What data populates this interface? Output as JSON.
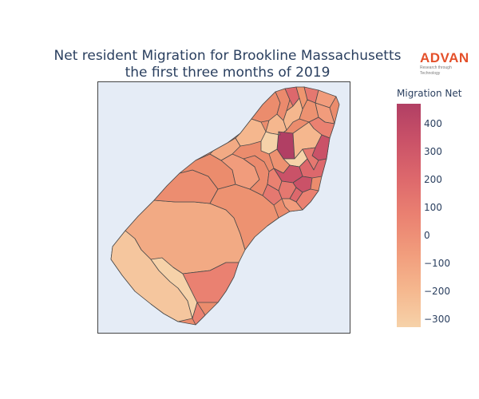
{
  "title_line1": "Net resident Migration for Brookline Massachusetts",
  "title_line2": "the first three months of 2019",
  "logo": {
    "word": "ADVAN",
    "tagline": "Research through Technology",
    "color": "#e4502a"
  },
  "colorbar": {
    "title": "Migration Net",
    "ticks": [
      "400",
      "300",
      "200",
      "100",
      "0",
      "−100",
      "−200",
      "−300"
    ],
    "range": [
      -330,
      470
    ],
    "colorscale": [
      "#f6d2a9",
      "#f5b78e",
      "#f19c7c",
      "#ea8171",
      "#dd686c",
      "#ca5268",
      "#b13f64"
    ]
  },
  "colors": {
    "map_background": "#e5ecf6",
    "region_stroke": "#4a4a4a",
    "text": "#2a3f5f"
  }
}
